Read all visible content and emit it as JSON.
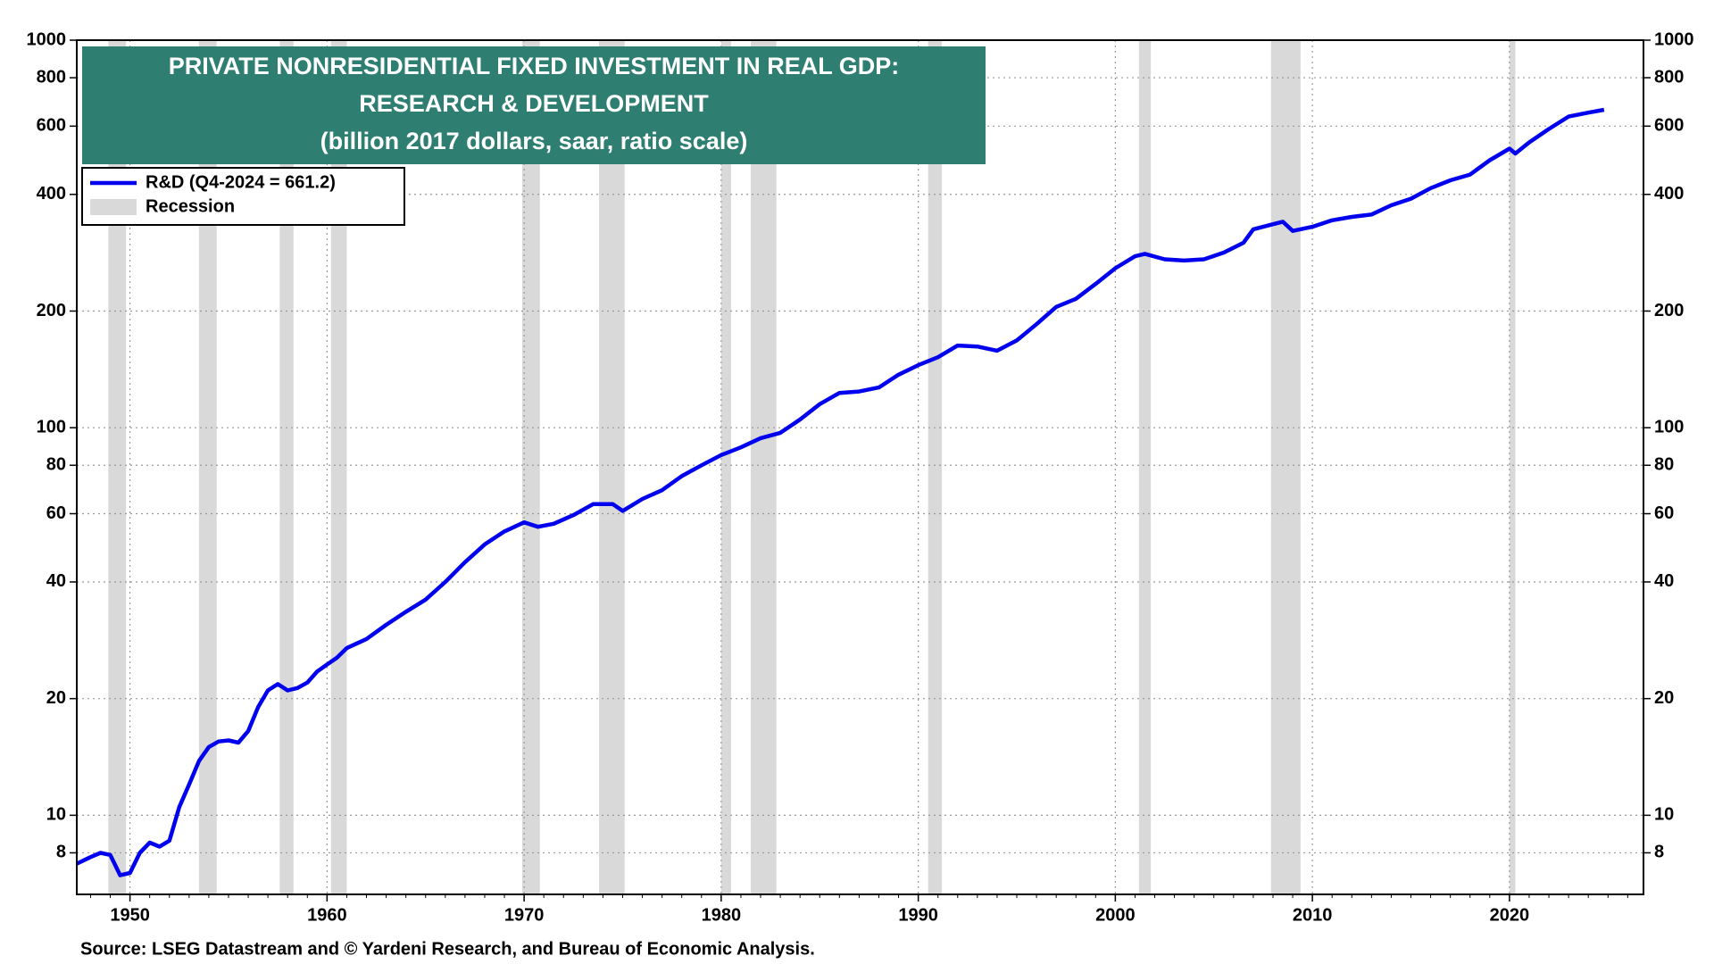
{
  "chart_data": {
    "type": "line",
    "title_lines": [
      "PRIVATE NONRESIDENTIAL FIXED INVESTMENT IN REAL GDP:",
      "RESEARCH & DEVELOPMENT",
      "(billion 2017 dollars, saar, ratio scale)"
    ],
    "source": "Source: LSEG Datastream and © Yardeni Research, and Bureau of Economic Analysis.",
    "log_scale": true,
    "grid": true,
    "legend": "top-left",
    "xlim": [
      1947.3,
      2026.8
    ],
    "xticks": [
      1950,
      1960,
      1970,
      1980,
      1990,
      2000,
      2010,
      2020
    ],
    "ylim": [
      6.25,
      1000
    ],
    "yticks": [
      8,
      10,
      20,
      40,
      60,
      80,
      100,
      200,
      400,
      600,
      800,
      1000
    ],
    "recession_label": "Recession",
    "recession_color": "#d9d9d9",
    "recessions": [
      [
        1948.9,
        1949.8
      ],
      [
        1953.5,
        1954.4
      ],
      [
        1957.6,
        1958.3
      ],
      [
        1960.2,
        1961.0
      ],
      [
        1969.9,
        1970.8
      ],
      [
        1973.8,
        1975.1
      ],
      [
        1980.0,
        1980.5
      ],
      [
        1981.5,
        1982.8
      ],
      [
        1990.5,
        1991.2
      ],
      [
        2001.2,
        2001.8
      ],
      [
        2007.9,
        2009.4
      ],
      [
        2020.0,
        2020.3
      ]
    ],
    "x": [
      1947.3,
      1948.0,
      1948.5,
      1949.0,
      1949.5,
      1950.0,
      1950.5,
      1951.0,
      1951.5,
      1952.0,
      1952.5,
      1953.0,
      1953.5,
      1954.0,
      1954.5,
      1955.0,
      1955.5,
      1956.0,
      1956.5,
      1957.0,
      1957.5,
      1958.0,
      1958.5,
      1959.0,
      1959.5,
      1960.0,
      1960.5,
      1961.0,
      1962.0,
      1963.0,
      1964.0,
      1965.0,
      1966.0,
      1967.0,
      1968.0,
      1969.0,
      1970.0,
      1970.7,
      1971.5,
      1972.5,
      1973.5,
      1974.5,
      1975.0,
      1976.0,
      1977.0,
      1978.0,
      1979.0,
      1980.0,
      1981.0,
      1982.0,
      1983.0,
      1984.0,
      1985.0,
      1986.0,
      1987.0,
      1988.0,
      1989.0,
      1990.0,
      1991.0,
      1992.0,
      1993.0,
      1994.0,
      1995.0,
      1996.0,
      1997.0,
      1998.0,
      1999.0,
      2000.0,
      2001.0,
      2001.5,
      2002.5,
      2003.5,
      2004.5,
      2005.5,
      2006.5,
      2007.0,
      2008.0,
      2008.5,
      2009.0,
      2010.0,
      2011.0,
      2012.0,
      2013.0,
      2014.0,
      2015.0,
      2016.0,
      2017.0,
      2018.0,
      2019.0,
      2020.0,
      2020.3,
      2021.0,
      2022.0,
      2023.0,
      2024.0,
      2024.8
    ],
    "series": [
      {
        "name": "R&D  (Q4-2024 = 661.2)",
        "color": "#0000ee",
        "values": [
          7.5,
          7.8,
          8.0,
          7.9,
          7.0,
          7.1,
          8.0,
          8.5,
          8.3,
          8.6,
          10.5,
          12.0,
          13.8,
          15.0,
          15.5,
          15.6,
          15.4,
          16.5,
          19.0,
          21.0,
          21.8,
          21.0,
          21.3,
          22.0,
          23.5,
          24.5,
          25.5,
          27.0,
          28.5,
          31.0,
          33.5,
          36.0,
          40.0,
          45.0,
          50.0,
          54.0,
          57.0,
          55.5,
          56.5,
          59.5,
          63.5,
          63.5,
          61.0,
          65.5,
          69.0,
          75.0,
          80.0,
          85.0,
          89.0,
          94.0,
          97.0,
          105.0,
          115.0,
          123.0,
          124.0,
          127.0,
          137.0,
          145.0,
          152.0,
          163.0,
          162.0,
          158.0,
          168.0,
          185.0,
          205.0,
          215.0,
          235.0,
          258.0,
          277.0,
          281.0,
          272.0,
          270.0,
          272.0,
          283.0,
          300.0,
          325.0,
          335.0,
          340.0,
          322.0,
          330.0,
          343.0,
          350.0,
          355.0,
          375.0,
          390.0,
          415.0,
          435.0,
          450.0,
          490.0,
          525.0,
          510.0,
          545.0,
          590.0,
          635.0,
          650.0,
          661.2
        ]
      }
    ]
  }
}
